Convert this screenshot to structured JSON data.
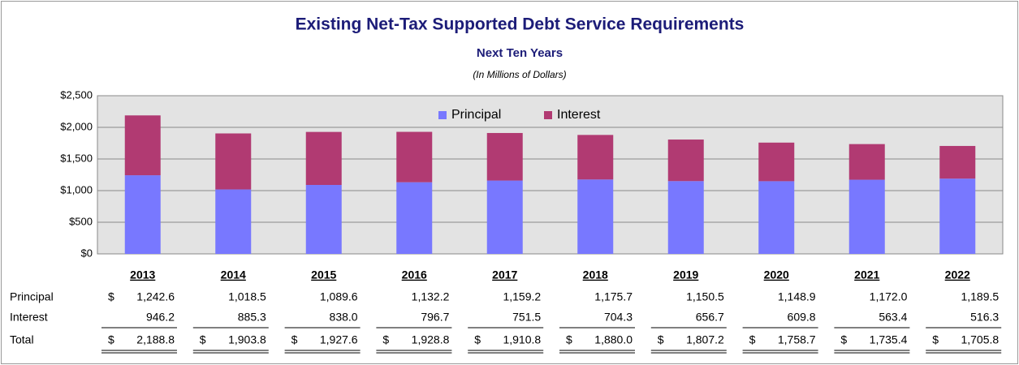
{
  "chart_data": {
    "type": "stacked_bar",
    "title": "Existing Net-Tax Supported Debt Service Requirements",
    "subtitle": "Next Ten Years",
    "note": "(In Millions of Dollars)",
    "categories": [
      "2013",
      "2014",
      "2015",
      "2016",
      "2017",
      "2018",
      "2019",
      "2020",
      "2021",
      "2022"
    ],
    "series": [
      {
        "name": "Principal",
        "color": "#7878ff",
        "values": [
          1242.6,
          1018.5,
          1089.6,
          1132.2,
          1159.2,
          1175.7,
          1150.5,
          1148.9,
          1172.0,
          1189.5
        ],
        "value_labels": [
          "1,242.6",
          "1,018.5",
          "1,089.6",
          "1,132.2",
          "1,159.2",
          "1,175.7",
          "1,150.5",
          "1,148.9",
          "1,172.0",
          "1,189.5"
        ]
      },
      {
        "name": "Interest",
        "color": "#b13a72",
        "values": [
          946.2,
          885.3,
          838.0,
          796.7,
          751.5,
          704.3,
          656.7,
          609.8,
          563.4,
          516.3
        ],
        "value_labels": [
          "946.2",
          "885.3",
          "838.0",
          "796.7",
          "751.5",
          "704.3",
          "656.7",
          "609.8",
          "563.4",
          "516.3"
        ]
      }
    ],
    "totals": {
      "name": "Total",
      "values": [
        2188.8,
        1903.8,
        1927.6,
        1928.8,
        1910.8,
        1880.0,
        1807.2,
        1758.7,
        1735.4,
        1705.8
      ],
      "value_labels": [
        "2,188.8",
        "1,903.8",
        "1,927.6",
        "1,928.8",
        "1,910.8",
        "1,880.0",
        "1,807.2",
        "1,758.7",
        "1,735.4",
        "1,705.8"
      ]
    },
    "currency_symbol": "$",
    "ylim": [
      0,
      2500
    ],
    "yticks": [
      {
        "value": 0,
        "label": "$0"
      },
      {
        "value": 500,
        "label": "$500"
      },
      {
        "value": 1000,
        "label": "$1,000"
      },
      {
        "value": 1500,
        "label": "$1,500"
      },
      {
        "value": 2000,
        "label": "$2,000"
      },
      {
        "value": 2500,
        "label": "$2,500"
      }
    ],
    "grid": true,
    "legend": "top"
  }
}
